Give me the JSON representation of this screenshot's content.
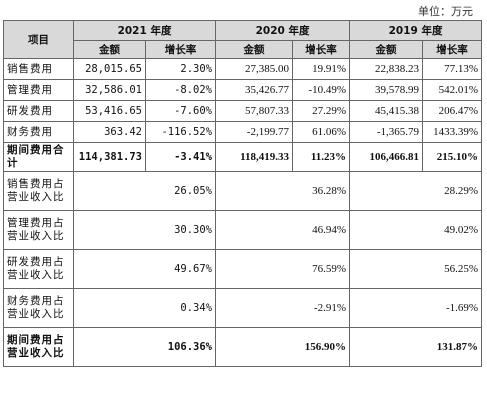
{
  "unit_label": "单位：万元",
  "header": {
    "item": "项目",
    "years": [
      "2021 年度",
      "2020 年度",
      "2019 年度"
    ],
    "amount": "金额",
    "growth": "增长率"
  },
  "rows": [
    {
      "label": "销售费用",
      "v2021": "28,015.65",
      "g2021": "2.30%",
      "v2020": "27,385.00",
      "g2020": "19.91%",
      "v2019": "22,838.23",
      "g2019": "77.13%"
    },
    {
      "label": "管理费用",
      "v2021": "32,586.01",
      "g2021": "-8.02%",
      "v2020": "35,426.77",
      "g2020": "-10.49%",
      "v2019": "39,578.99",
      "g2019": "542.01%"
    },
    {
      "label": "研发费用",
      "v2021": "53,416.65",
      "g2021": "-7.60%",
      "v2020": "57,807.33",
      "g2020": "27.29%",
      "v2019": "45,415.38",
      "g2019": "206.47%"
    },
    {
      "label": "财务费用",
      "v2021": "363.42",
      "g2021": "-116.52%",
      "v2020": "-2,199.77",
      "g2020": "61.06%",
      "v2019": "-1,365.79",
      "g2019": "1433.39%"
    },
    {
      "label": "期间费用合计",
      "v2021": "114,381.73",
      "g2021": "-3.41%",
      "v2020": "118,419.33",
      "g2020": "11.23%",
      "v2019": "106,466.81",
      "g2019": "215.10%"
    }
  ],
  "ratios": [
    {
      "label": "销售费用占营业收入比",
      "r2021": "26.05%",
      "r2020": "36.28%",
      "r2019": "28.29%"
    },
    {
      "label": "管理费用占营业收入比",
      "r2021": "30.30%",
      "r2020": "46.94%",
      "r2019": "49.02%"
    },
    {
      "label": "研发费用占营业收入比",
      "r2021": "49.67%",
      "r2020": "76.59%",
      "r2019": "56.25%"
    },
    {
      "label": "财务费用占营业收入比",
      "r2021": "0.34%",
      "r2020": "-2.91%",
      "r2019": "-1.69%"
    },
    {
      "label": "期间费用占营业收入比",
      "r2021": "106.36%",
      "r2020": "156.90%",
      "r2019": "131.87%"
    }
  ]
}
